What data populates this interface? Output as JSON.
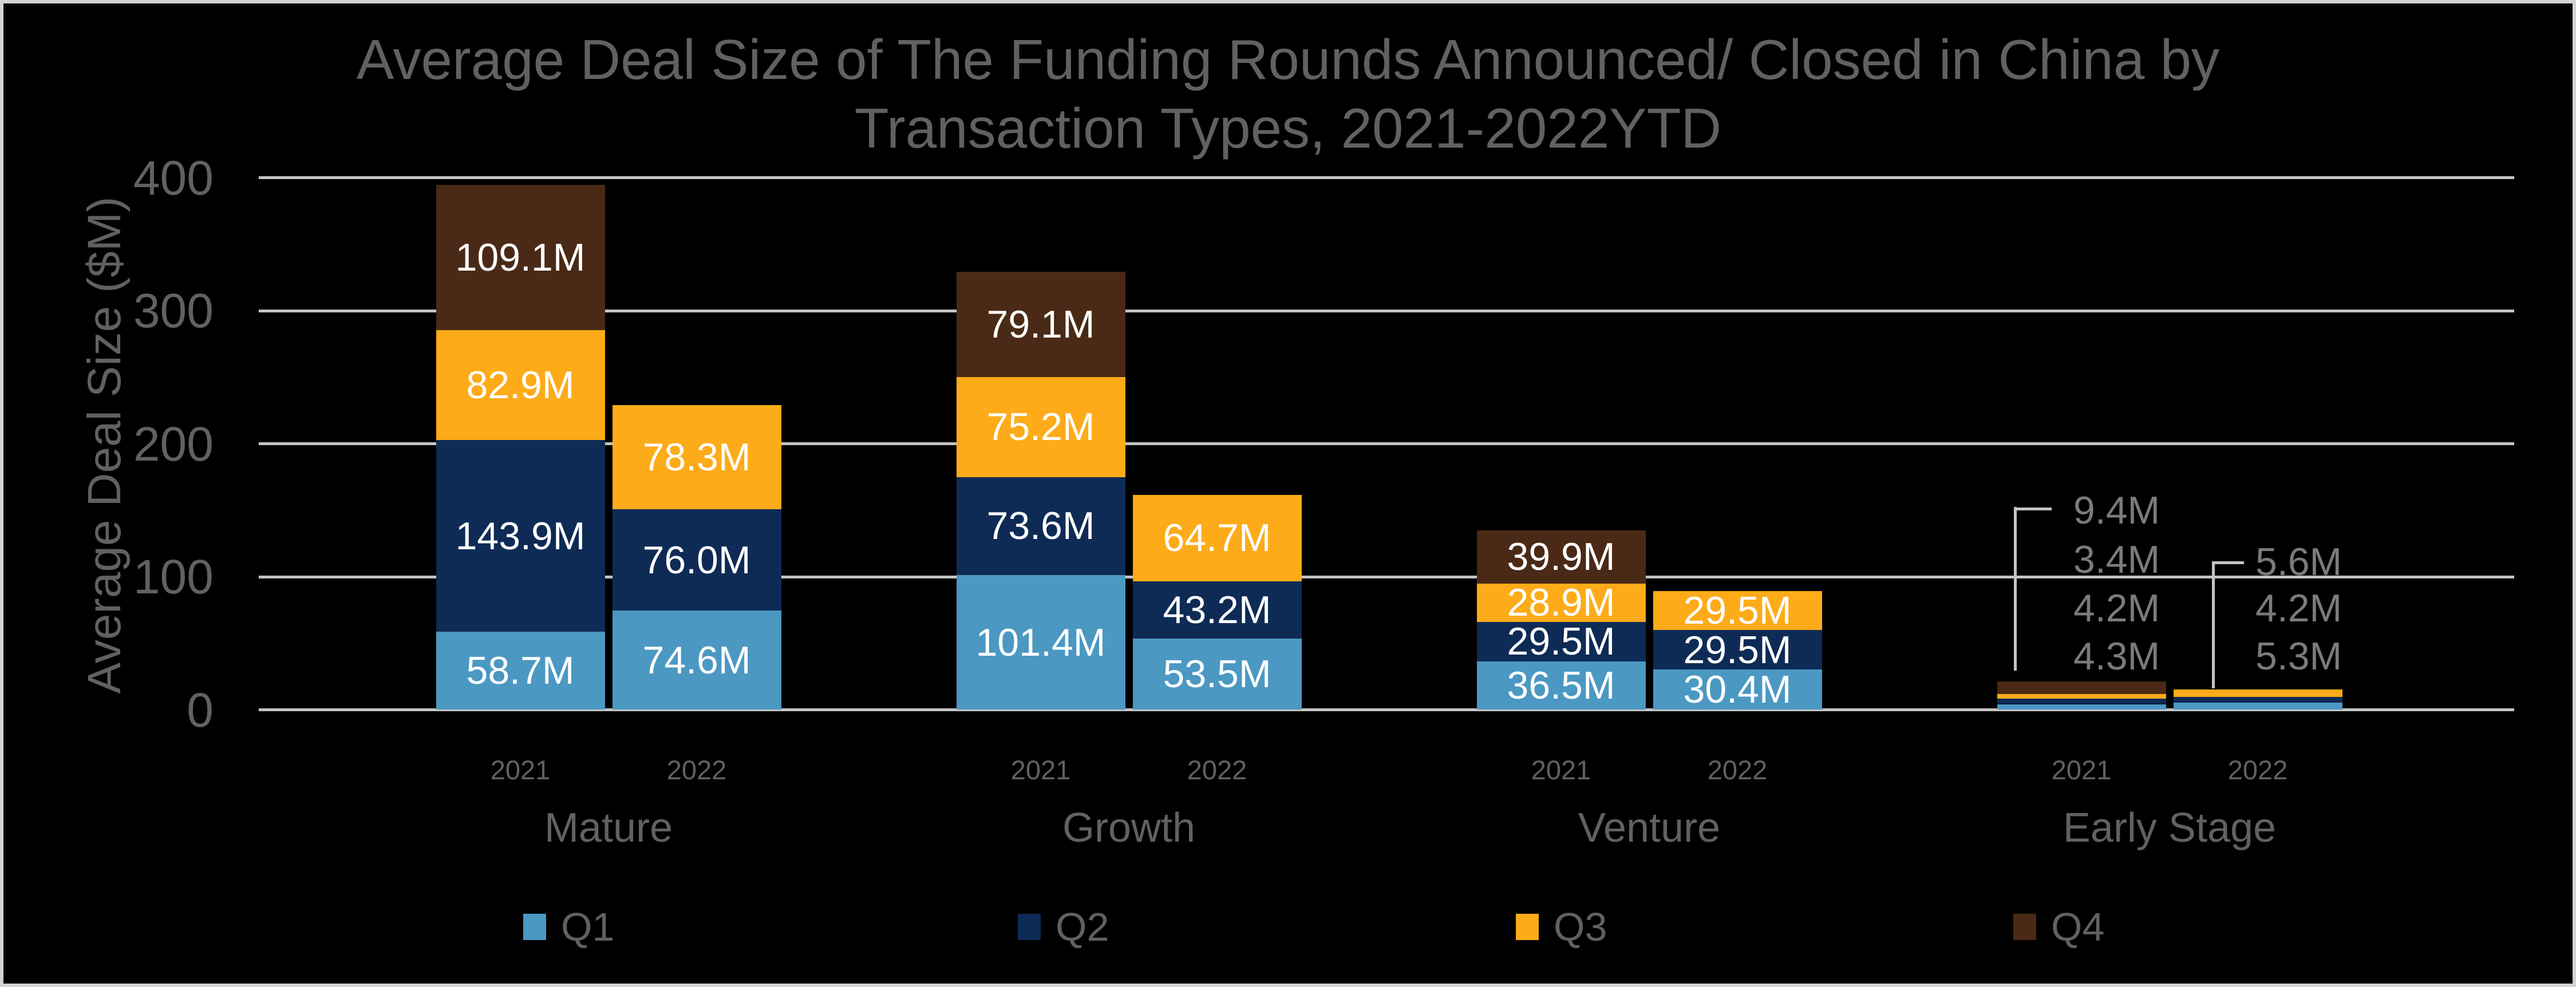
{
  "chart_data": {
    "type": "bar",
    "stacked": true,
    "title": "Average Deal Size of The Funding Rounds Announced/ Closed in China by Transaction Types, 2021-2022YTD",
    "title_line1": "Average Deal Size of The Funding Rounds Announced/ Closed in China by",
    "title_line2": "Transaction Types, 2021-2022YTD",
    "ylabel": "Average Deal Size ($M)",
    "ylim": [
      0,
      400
    ],
    "y_ticks": [
      0,
      100,
      200,
      300,
      400
    ],
    "value_suffix": "M",
    "grid": true,
    "legend_position": "bottom",
    "series_order": [
      "Q1",
      "Q2",
      "Q3",
      "Q4"
    ],
    "legend": [
      "Q1",
      "Q2",
      "Q3",
      "Q4"
    ],
    "colors": {
      "Q1": "#4B98C3",
      "Q2": "#0E2B55",
      "Q3": "#FDAB18",
      "Q4": "#4A2A16",
      "background": "#000000",
      "frame_border": "#D3D3D3",
      "gridline": "#C4C4C4",
      "axis_text": "#616161",
      "bar_label_text": "#FFFFFF",
      "callout_text": "#7B7B7B"
    },
    "groups": [
      {
        "category": "Mature",
        "bars": [
          {
            "year": "2021",
            "labels": "inside",
            "values": {
              "Q1": 58.7,
              "Q2": 143.9,
              "Q3": 82.9,
              "Q4": 109.1
            }
          },
          {
            "year": "2022",
            "labels": "inside",
            "values": {
              "Q1": 74.6,
              "Q2": 76.0,
              "Q3": 78.3
            }
          }
        ]
      },
      {
        "category": "Growth",
        "bars": [
          {
            "year": "2021",
            "labels": "inside",
            "values": {
              "Q1": 101.4,
              "Q2": 73.6,
              "Q3": 75.2,
              "Q4": 79.1
            }
          },
          {
            "year": "2022",
            "labels": "inside",
            "values": {
              "Q1": 53.5,
              "Q2": 43.2,
              "Q3": 64.7
            }
          }
        ]
      },
      {
        "category": "Venture",
        "bars": [
          {
            "year": "2021",
            "labels": "inside",
            "values": {
              "Q1": 36.5,
              "Q2": 29.5,
              "Q3": 28.9,
              "Q4": 39.9
            }
          },
          {
            "year": "2022",
            "labels": "inside",
            "values": {
              "Q1": 30.4,
              "Q2": 29.5,
              "Q3": 29.5
            }
          }
        ]
      },
      {
        "category": "Early Stage",
        "bars": [
          {
            "year": "2021",
            "labels": "callout",
            "values": {
              "Q1": 4.3,
              "Q2": 4.2,
              "Q3": 3.4,
              "Q4": 9.4
            }
          },
          {
            "year": "2022",
            "labels": "callout",
            "values": {
              "Q1": 5.3,
              "Q2": 4.2,
              "Q3": 5.6
            }
          }
        ]
      }
    ]
  }
}
